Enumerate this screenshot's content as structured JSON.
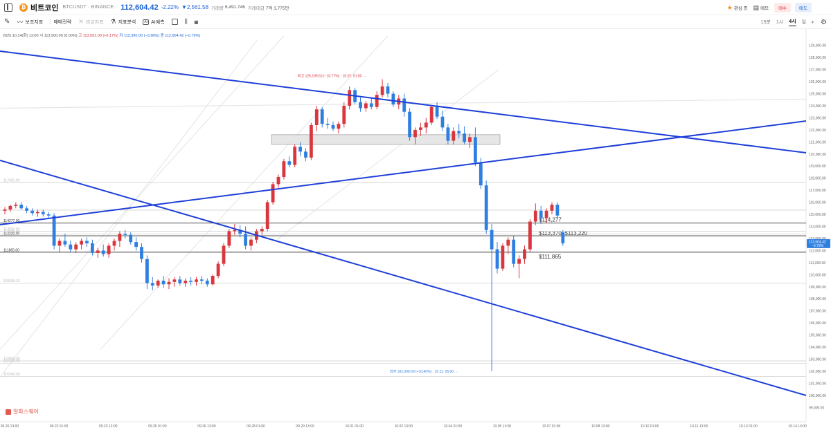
{
  "header": {
    "coin_name": "비트코인",
    "coin_symbol": "₿",
    "pair": "BTCUSDT · BINANCE",
    "price": "112,604.42",
    "change_pct": "-2.22%",
    "change_abs": "▼2,561.58",
    "volume_label": "거래량",
    "volume": "6,491.746",
    "value_label": "거래대금",
    "value": "7억 3,775만",
    "watch_label": "관심 종",
    "memo_label": "메모",
    "buy_label": "매수",
    "sell_label": "매도",
    "icons": {
      "watch": "star-icon",
      "memo": "memo-icon",
      "sidebar": "sidebar-toggle-icon",
      "coin": "bitcoin-icon"
    }
  },
  "toolbar": {
    "items": [
      {
        "label": "보조지표",
        "icon": "indicator-icon",
        "enabled": true
      },
      {
        "label": "매매전략",
        "icon": "strategy-icon",
        "enabled": true
      },
      {
        "label": "비교지표",
        "icon": "compare-icon",
        "enabled": false
      },
      {
        "label": "지표분석",
        "icon": "analysis-icon",
        "enabled": true
      },
      {
        "label": "AI예측",
        "icon": "ai-icon",
        "enabled": true
      }
    ],
    "ai_badge": "AI",
    "timeframes": [
      "15분",
      "1시",
      "4시",
      "일"
    ],
    "active_timeframe": "4시",
    "icons": {
      "draw": "pencil-icon",
      "layout": "layout-square-icon",
      "chart_type": "candle-icon",
      "screenshot": "camera-icon",
      "settings": "gear-icon",
      "dropdown": "chevron-down-icon"
    }
  },
  "ohlc_bar": {
    "date": "2025.10.14(화) 13:00",
    "open_label": "시",
    "open": "113,500.00 (0.00%)",
    "high_label": "고",
    "high": "113,691.00 (+0.17%)",
    "low_label": "저",
    "low": "112,390.00 (−0.98%)",
    "close_label": "종",
    "close": "112,604.42 (−0.79%)"
  },
  "watermark": "알파스퀘어",
  "chart_data": {
    "type": "candlestick",
    "y_range": [
      98500,
      129500
    ],
    "y_ticks": [
      99000,
      100000,
      101000,
      102000,
      103000,
      104000,
      105000,
      106000,
      107000,
      108000,
      109000,
      110000,
      111000,
      112000,
      113000,
      114000,
      115000,
      116000,
      117000,
      118000,
      119000,
      120000,
      121000,
      122000,
      123000,
      124000,
      125000,
      126000,
      127000,
      128000,
      129000
    ],
    "x_tick_labels": [
      "09.20 13:00",
      "09.22 01:00",
      "09.23 13:00",
      "09.25 01:00",
      "09.26 13:00",
      "09.28 01:00",
      "09.29 13:00",
      "10.01 01:00",
      "10.02 13:00",
      "10.04 01:00",
      "10.05 13:00",
      "10.07 01:00",
      "10.08 13:00",
      "10.10 01:00",
      "10.11 13:00",
      "10.13 01:00",
      "10.14 13:00",
      "10.16 01:00",
      "10.17 13:00",
      "10.19 01:00",
      "10.20 13:00",
      "10.22 01:00",
      "10.23 13:00",
      "10.25 01:00"
    ],
    "candles": [
      [
        115300,
        115600,
        115000,
        115400
      ],
      [
        115400,
        115800,
        115200,
        115700
      ],
      [
        115700,
        116000,
        115500,
        115800
      ],
      [
        115800,
        116000,
        115400,
        115500
      ],
      [
        115500,
        115700,
        115100,
        115300
      ],
      [
        115300,
        115500,
        114900,
        115100
      ],
      [
        115100,
        115400,
        114800,
        115200
      ],
      [
        115200,
        115400,
        114800,
        115000
      ],
      [
        115000,
        115200,
        114700,
        114900
      ],
      [
        114900,
        115100,
        112100,
        112400
      ],
      [
        112400,
        113000,
        111900,
        112800
      ],
      [
        112800,
        113400,
        112300,
        112500
      ],
      [
        112500,
        112800,
        111900,
        112100
      ],
      [
        112100,
        112700,
        111800,
        112500
      ],
      [
        112500,
        113000,
        112100,
        112800
      ],
      [
        112800,
        113100,
        112300,
        112600
      ],
      [
        112600,
        112900,
        111600,
        111800
      ],
      [
        111800,
        112200,
        111400,
        112000
      ],
      [
        112000,
        112500,
        111500,
        111700
      ],
      [
        111700,
        112600,
        111400,
        112400
      ],
      [
        112400,
        113000,
        112000,
        112800
      ],
      [
        112800,
        113600,
        112300,
        113400
      ],
      [
        113400,
        113700,
        113000,
        113300
      ],
      [
        113300,
        113500,
        112500,
        112700
      ],
      [
        112700,
        113100,
        112000,
        112300
      ],
      [
        112300,
        112600,
        111000,
        111300
      ],
      [
        111300,
        111600,
        108800,
        109300
      ],
      [
        109300,
        109800,
        108700,
        109100
      ],
      [
        109100,
        109600,
        108900,
        109500
      ],
      [
        109500,
        109900,
        108900,
        109200
      ],
      [
        109200,
        109700,
        108800,
        109400
      ],
      [
        109400,
        109800,
        109000,
        109600
      ],
      [
        109600,
        109900,
        109100,
        109300
      ],
      [
        109300,
        109700,
        109000,
        109500
      ],
      [
        109500,
        109800,
        109100,
        109400
      ],
      [
        109400,
        109800,
        109100,
        109600
      ],
      [
        109600,
        109900,
        109200,
        109500
      ],
      [
        109500,
        109700,
        109000,
        109200
      ],
      [
        109200,
        110000,
        109100,
        109900
      ],
      [
        109900,
        111100,
        109700,
        110900
      ],
      [
        110900,
        112600,
        110700,
        112400
      ],
      [
        112400,
        113800,
        112200,
        113600
      ],
      [
        113600,
        114200,
        113300,
        113700
      ],
      [
        113700,
        114100,
        113100,
        113400
      ],
      [
        113400,
        114000,
        112100,
        112400
      ],
      [
        112400,
        113100,
        112000,
        112900
      ],
      [
        112900,
        113800,
        112600,
        113600
      ],
      [
        113600,
        114000,
        113300,
        113800
      ],
      [
        113800,
        116200,
        113600,
        116000
      ],
      [
        116000,
        117700,
        115800,
        117500
      ],
      [
        117500,
        118300,
        117200,
        118100
      ],
      [
        118100,
        119600,
        117900,
        119400
      ],
      [
        119400,
        119800,
        118900,
        119100
      ],
      [
        119100,
        120800,
        118900,
        120600
      ],
      [
        120600,
        121000,
        119800,
        120200
      ],
      [
        120200,
        120500,
        119400,
        119700
      ],
      [
        119700,
        122600,
        119500,
        122400
      ],
      [
        122400,
        124000,
        121900,
        123700
      ],
      [
        123700,
        123900,
        122200,
        122500
      ],
      [
        122500,
        123000,
        122100,
        122400
      ],
      [
        122400,
        122700,
        121900,
        122100
      ],
      [
        122100,
        122700,
        121700,
        122500
      ],
      [
        122500,
        124300,
        122200,
        124000
      ],
      [
        124000,
        125600,
        123700,
        125300
      ],
      [
        125300,
        125500,
        124100,
        124300
      ],
      [
        124300,
        124700,
        123500,
        123800
      ],
      [
        123800,
        124400,
        123500,
        124200
      ],
      [
        124200,
        124600,
        123700,
        123900
      ],
      [
        123900,
        125200,
        123700,
        124900
      ],
      [
        124900,
        126199,
        124700,
        125600
      ],
      [
        125600,
        125900,
        124700,
        125000
      ],
      [
        125000,
        125200,
        123900,
        124100
      ],
      [
        124100,
        124900,
        123700,
        124600
      ],
      [
        124600,
        125000,
        123100,
        123500
      ],
      [
        123500,
        123800,
        121100,
        121400
      ],
      [
        121400,
        122200,
        120800,
        122000
      ],
      [
        122000,
        122600,
        121500,
        122200
      ],
      [
        122200,
        123000,
        121700,
        122600
      ],
      [
        122600,
        124000,
        122400,
        123900
      ],
      [
        123900,
        124300,
        122900,
        123100
      ],
      [
        123100,
        123600,
        121900,
        122200
      ],
      [
        122200,
        122500,
        120800,
        121100
      ],
      [
        121100,
        122200,
        120800,
        121900
      ],
      [
        121900,
        122500,
        121300,
        121700
      ],
      [
        121700,
        122300,
        120800,
        121000
      ],
      [
        121000,
        121700,
        120500,
        121400
      ],
      [
        121400,
        122200,
        119000,
        119300
      ],
      [
        119300,
        119700,
        117100,
        117400
      ],
      [
        117400,
        117800,
        113400,
        113700
      ],
      [
        113700,
        114200,
        102000,
        112100
      ],
      [
        112100,
        112700,
        110100,
        110500
      ],
      [
        110500,
        112600,
        110300,
        112400
      ],
      [
        112400,
        113100,
        111700,
        112900
      ],
      [
        112900,
        113200,
        110600,
        110900
      ],
      [
        110900,
        111600,
        109700,
        111300
      ],
      [
        111300,
        112400,
        110900,
        112100
      ],
      [
        112100,
        114600,
        111900,
        114400
      ],
      [
        114400,
        115900,
        114100,
        115300
      ],
      [
        115300,
        115700,
        114200,
        114700
      ],
      [
        114700,
        115500,
        114300,
        115300
      ],
      [
        115300,
        116000,
        115000,
        115800
      ],
      [
        115800,
        116000,
        114600,
        114900
      ],
      [
        113500,
        113691,
        112390,
        112604
      ]
    ],
    "price_levels": [
      {
        "price": 101560,
        "label": "101560.00"
      },
      {
        "price": 102660,
        "label": "102660.00"
      },
      {
        "price": 102850,
        "label": "102850.00"
      },
      {
        "price": 109300,
        "label": "109300.32"
      },
      {
        "price": 111865,
        "label": "111865.00",
        "annotation": "$111,865"
      },
      {
        "price": 113220,
        "label": "113220.00",
        "annotation": "$113,370~$113,220"
      },
      {
        "price": 113370,
        "label": "113370.00"
      },
      {
        "price": 113600,
        "label": "113600.00"
      },
      {
        "price": 114277,
        "label": "114277.00",
        "annotation": "$114,277"
      },
      {
        "price": 115350,
        "label": ""
      },
      {
        "price": 117650,
        "label": "117650.00"
      }
    ],
    "zone": {
      "from": 120800,
      "to": 121600
    },
    "high_annotation": "최고 126,199.63 (−10.77%) · 10.07. 01:00 →",
    "low_annotation": "최저 102,000.00 (+10.40%) · 10.11. 05:00 →",
    "current_price_label": "112,604.42",
    "current_change_label": "−0.79%",
    "colors": {
      "up": "#d9363e",
      "down": "#2f7fe0",
      "trendline": "#1f3fd8",
      "current_tag": "#2f7fe0",
      "zone": "#e2e2e2"
    }
  }
}
